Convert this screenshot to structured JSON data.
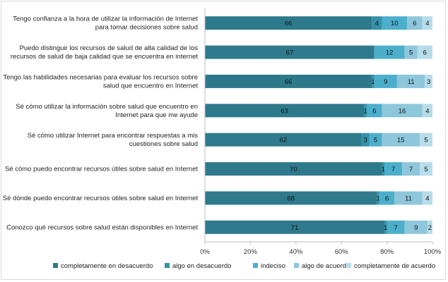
{
  "chart_data": {
    "type": "bar",
    "orientation": "horizontal",
    "stacked": true,
    "percent_scale": true,
    "categories": [
      [
        "Tengo confianza a la hora de utilizar la información de Internet",
        "para tomar decisiones sobre salud"
      ],
      [
        "Puedo distinguir los recursos de salud de alta calidad de los",
        "recursos de salud de baja calidad que se encuentra en internet"
      ],
      [
        "Tengo las habilidades necesarias para evaluar los recursos sobre",
        "salud que encuentro en Internet"
      ],
      [
        "Sé cómo utilizar la información sobre salud que encuentro en",
        "Internet para que me ayude"
      ],
      [
        "Sé cómo utilizar Internet para encontrar respuestas a mis",
        "cuestiones sobre salud"
      ],
      [
        "Sé cómo puedo encontrar recursos útiles sobre salud en Internet"
      ],
      [
        "Sé dónde puedo encontrar recursos útiles sobre salud en Internet"
      ],
      [
        "Conozco qué recursos sobre salud están disponibles en Internet"
      ]
    ],
    "series": [
      {
        "name": "completamente en desacuerdo",
        "color": "#2e7a8c",
        "label_color": "#111111",
        "values": [
          66,
          67,
          66,
          63,
          62,
          70,
          68,
          71
        ]
      },
      {
        "name": "algo en desacuerdo",
        "color": "#3591a8",
        "label_color": "#111111",
        "values": [
          4,
          0,
          1,
          1,
          3,
          1,
          1,
          1
        ]
      },
      {
        "name": "indeciso",
        "color": "#4bafcc",
        "label_color": "#111111",
        "values": [
          10,
          12,
          9,
          6,
          5,
          7,
          6,
          7
        ]
      },
      {
        "name": "algo de acuerdo",
        "color": "#8ec6db",
        "label_color": "#111111",
        "values": [
          6,
          5,
          11,
          16,
          15,
          7,
          11,
          9
        ]
      },
      {
        "name": "completamente de acuerdo",
        "color": "#b7dcea",
        "label_color": "#111111",
        "values": [
          4,
          6,
          3,
          4,
          5,
          5,
          4,
          2
        ]
      }
    ],
    "xticks": [
      "0%",
      "20%",
      "40%",
      "60%",
      "80%",
      "100%"
    ],
    "xlim": [
      0,
      100
    ],
    "legend": "bottom",
    "grid": false
  }
}
